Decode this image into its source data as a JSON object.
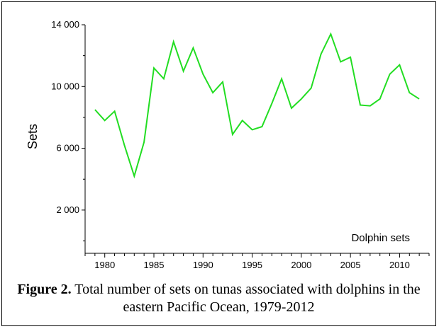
{
  "caption": {
    "label": "Figure 2.",
    "text": " Total number of sets on tunas associated with dolphins in the eastern Pacific Ocean, 1979-2012"
  },
  "chart_data": {
    "type": "line",
    "ylabel": "Sets",
    "xlabel": "",
    "annotation": "Dolphin sets",
    "xlim": [
      1978,
      2013
    ],
    "ylim": [
      -800,
      14000
    ],
    "x_ticks": [
      1980,
      1985,
      1990,
      1995,
      2000,
      2005,
      2010
    ],
    "y_ticks": [
      2000,
      6000,
      10000,
      14000
    ],
    "y_tick_labels": [
      "2 000",
      "6 000",
      "10 000",
      "14 000"
    ],
    "line_color": "#22dd22",
    "grid": false,
    "series": [
      {
        "x": [
          1979,
          1980,
          1981,
          1982,
          1983,
          1984,
          1985,
          1986,
          1987,
          1988,
          1989,
          1990,
          1991,
          1992,
          1993,
          1994,
          1995,
          1996,
          1997,
          1998,
          1999,
          2000,
          2001,
          2002,
          2003,
          2004,
          2005,
          2006,
          2007,
          2008,
          2009,
          2010,
          2011,
          2012
        ],
        "values": [
          8500,
          7800,
          8400,
          6200,
          4200,
          6400,
          11200,
          10500,
          12900,
          11000,
          12500,
          10800,
          9600,
          10300,
          6900,
          7800,
          7200,
          7400,
          8900,
          10500,
          8600,
          9200,
          9900,
          12100,
          13400,
          11600,
          11900,
          8800,
          8750,
          9200,
          10800,
          11400,
          9600,
          9200
        ]
      }
    ]
  }
}
